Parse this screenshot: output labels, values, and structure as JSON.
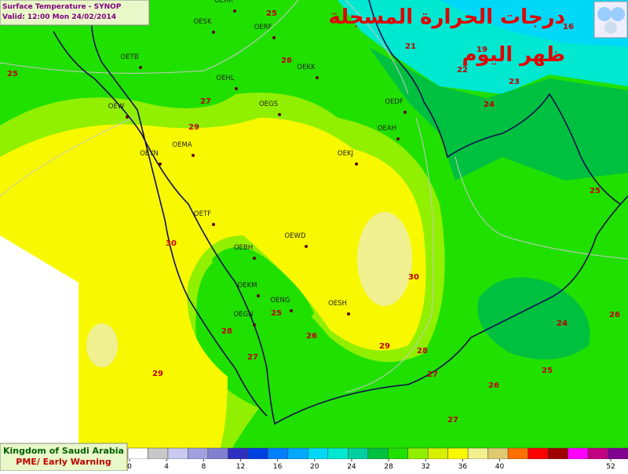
{
  "header": {
    "title": "Surface Temperature  - SYNOP",
    "valid": "Valid: 12:00 Mon 24/02/2014"
  },
  "arabic_title": [
    "درجات الحرارة المسجلة",
    "ظهر اليوم"
  ],
  "stations": [
    "OERR",
    "OESK",
    "OERF",
    "OETB",
    "OEKK",
    "OEHL",
    "OEGS",
    "OEW",
    "OEDF",
    "OEAH",
    "OEMA",
    "OEYN",
    "OEKJ",
    "OETF",
    "OEWD",
    "OEBH",
    "OEKM",
    "OENG",
    "OESH",
    "OEGN"
  ],
  "temperatures": [
    25,
    26,
    25,
    27,
    29,
    21,
    19,
    22,
    23,
    24,
    16,
    25,
    30,
    30,
    28,
    25,
    26,
    27,
    29,
    28,
    27,
    24,
    26,
    25,
    26,
    29,
    27
  ],
  "footer": {
    "country": "Kingdom of Saudi Arabia",
    "agency": "PME/ Early Warning"
  },
  "legend": {
    "colors": [
      "#ffffff",
      "#c8c8c8",
      "#c8c8f0",
      "#a0a0e0",
      "#8080d0",
      "#3030c0",
      "#0040e0",
      "#0080ff",
      "#00a8ff",
      "#00d8f8",
      "#00e8d0",
      "#00d0a0",
      "#00c040",
      "#20e000",
      "#90f000",
      "#d8f000",
      "#f8f800",
      "#f0f090",
      "#e0c870",
      "#ff7000",
      "#ff0000",
      "#a00000",
      "#ff00ff",
      "#c00080",
      "#800090"
    ],
    "ticks": [
      0,
      4,
      8,
      12,
      16,
      20,
      24,
      28,
      32,
      36,
      40,
      52
    ],
    "lim": [
      0,
      52
    ]
  }
}
